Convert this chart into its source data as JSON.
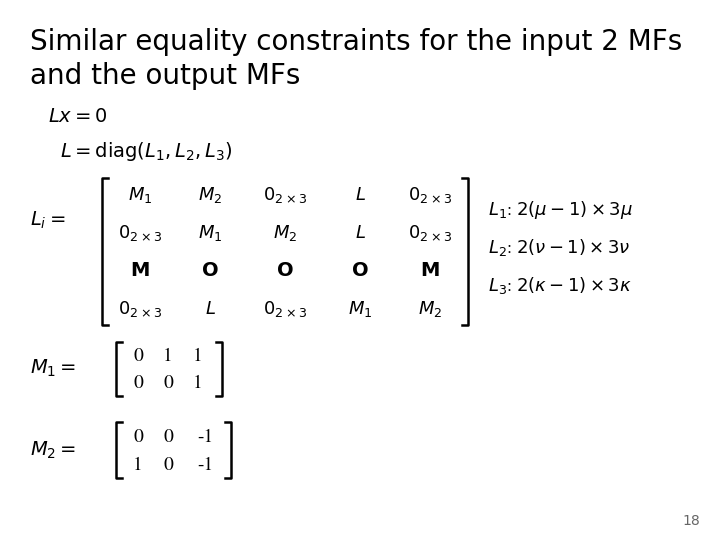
{
  "title_line1": "Similar equality constraints for the input 2 MFs",
  "title_line2": "and the output MFs",
  "title_fontsize": 20,
  "background_color": "#ffffff",
  "page_number": "18",
  "content_fontsize": 14,
  "matrix_fontsize": 13,
  "small_fontsize": 11,
  "ann_fontsize": 13
}
